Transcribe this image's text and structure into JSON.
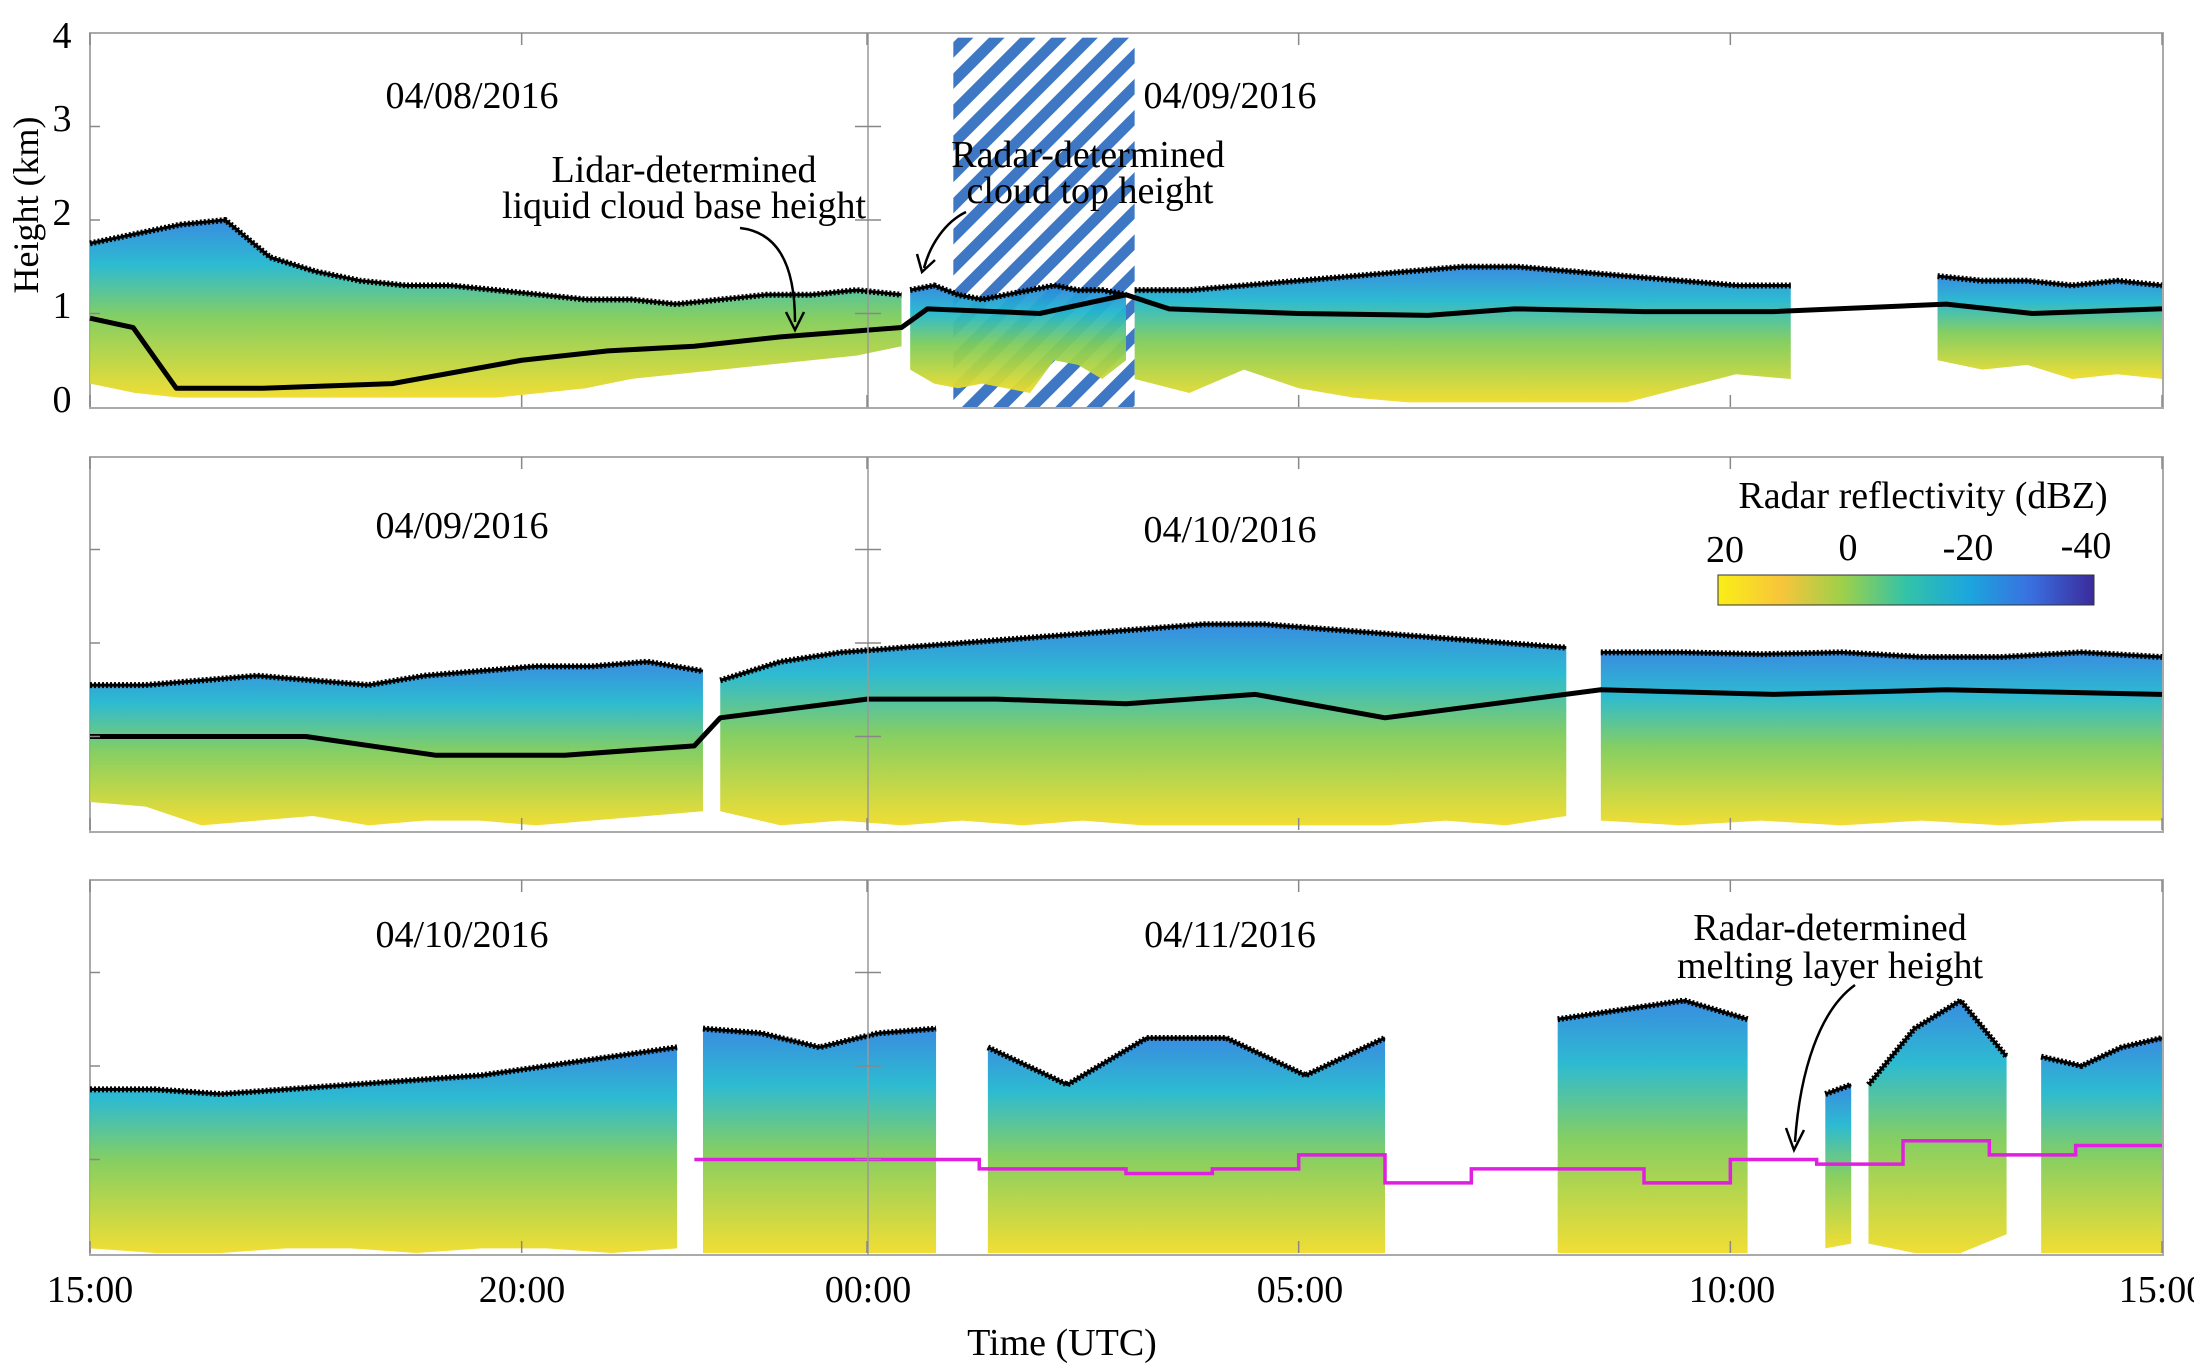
{
  "chart_data": {
    "type": "heatmap",
    "title": "",
    "xlabel": "Time (UTC)",
    "ylabel": "Height (km)",
    "x_ticks": [
      "15:00",
      "20:00",
      "00:00",
      "05:00",
      "10:00",
      "15:00"
    ],
    "y_ticks": [
      "0",
      "1",
      "2",
      "3",
      "4"
    ],
    "ylim": [
      0,
      4
    ],
    "colorbar": {
      "title": "Radar reflectivity (dBZ)",
      "tick_labels": [
        "20",
        "0",
        "-20",
        "-40"
      ],
      "range": [
        20,
        -45
      ],
      "colors": [
        "#f9ee16",
        "#f8c53a",
        "#9cd04a",
        "#33c3a8",
        "#1ba6dd",
        "#3a6fe0",
        "#3b2a9a"
      ]
    },
    "colors": {
      "cloud_height_markers": "#000000",
      "melting_layer": "#e020e0",
      "missing_data_hatch": "#3e78c4"
    },
    "panels": [
      {
        "dates": [
          "04/08/2016",
          "04/09/2016"
        ],
        "annotations": [
          {
            "text_lines": [
              "Lidar-determined",
              "liquid cloud base height"
            ]
          },
          {
            "text_lines": [
              "Radar-determined",
              "cloud top height"
            ]
          }
        ],
        "missing_data_hours": [
          10.0,
          12.1
        ],
        "echo_segments": [
          {
            "hours": [
              0.0,
              9.4
            ],
            "cloud_top_km": [
              1.75,
              1.85,
              1.95,
              2.0,
              1.6,
              1.45,
              1.35,
              1.3,
              1.3,
              1.25,
              1.2,
              1.15,
              1.15,
              1.1,
              1.15,
              1.2,
              1.2,
              1.25,
              1.2
            ],
            "echo_bottom_km": [
              0.25,
              0.15,
              0.1,
              0.1,
              0.1,
              0.1,
              0.1,
              0.1,
              0.1,
              0.1,
              0.15,
              0.2,
              0.3,
              0.35,
              0.4,
              0.45,
              0.5,
              0.55,
              0.65
            ]
          },
          {
            "hours": [
              9.5,
              12.0
            ],
            "cloud_top_km": [
              1.25,
              1.3,
              1.2,
              1.15,
              1.2,
              1.25,
              1.3,
              1.25,
              1.25,
              1.2
            ],
            "echo_bottom_km": [
              0.4,
              0.25,
              0.2,
              0.25,
              0.2,
              0.15,
              0.5,
              0.45,
              0.3,
              0.5
            ]
          },
          {
            "hours": [
              12.1,
              19.7
            ],
            "cloud_top_km": [
              1.25,
              1.25,
              1.3,
              1.35,
              1.4,
              1.45,
              1.5,
              1.5,
              1.45,
              1.4,
              1.35,
              1.3,
              1.3
            ],
            "echo_bottom_km": [
              0.3,
              0.15,
              0.4,
              0.2,
              0.1,
              0.05,
              0.05,
              0.05,
              0.05,
              0.05,
              0.2,
              0.35,
              0.3
            ]
          },
          {
            "hours": [
              21.4,
              24.0
            ],
            "cloud_top_km": [
              1.4,
              1.35,
              1.35,
              1.3,
              1.35,
              1.3
            ],
            "echo_bottom_km": [
              0.5,
              0.4,
              0.45,
              0.3,
              0.35,
              0.3
            ]
          }
        ],
        "lidar_cloud_base": {
          "hours": [
            0.0,
            0.5,
            1.0,
            2.0,
            3.5,
            5.0,
            6.0,
            7.0,
            8.0,
            9.4,
            9.7,
            11.0,
            12.0,
            12.5,
            14.0,
            15.5,
            16.5,
            18.0,
            19.5,
            21.5,
            22.5,
            24.0
          ],
          "km": [
            0.95,
            0.85,
            0.2,
            0.2,
            0.25,
            0.5,
            0.6,
            0.65,
            0.75,
            0.85,
            1.05,
            1.0,
            1.2,
            1.05,
            1.0,
            0.98,
            1.05,
            1.02,
            1.02,
            1.1,
            1.0,
            1.05
          ]
        }
      },
      {
        "dates": [
          "04/09/2016",
          "04/10/2016"
        ],
        "annotations": [],
        "echo_segments": [
          {
            "hours": [
              0.0,
              7.1
            ],
            "cloud_top_km": [
              1.55,
              1.55,
              1.6,
              1.65,
              1.6,
              1.55,
              1.65,
              1.7,
              1.75,
              1.75,
              1.8,
              1.7
            ],
            "echo_bottom_km": [
              0.3,
              0.25,
              0.05,
              0.1,
              0.15,
              0.05,
              0.1,
              0.1,
              0.05,
              0.1,
              0.15,
              0.2
            ]
          },
          {
            "hours": [
              7.3,
              17.1
            ],
            "cloud_top_km": [
              1.6,
              1.8,
              1.9,
              1.95,
              2.0,
              2.05,
              2.1,
              2.15,
              2.2,
              2.2,
              2.15,
              2.1,
              2.05,
              2.0,
              1.95
            ],
            "echo_bottom_km": [
              0.2,
              0.05,
              0.1,
              0.05,
              0.1,
              0.05,
              0.1,
              0.05,
              0.05,
              0.05,
              0.05,
              0.05,
              0.1,
              0.05,
              0.15
            ]
          },
          {
            "hours": [
              17.5,
              24.0
            ],
            "cloud_top_km": [
              1.9,
              1.9,
              1.88,
              1.9,
              1.85,
              1.85,
              1.9,
              1.85
            ],
            "echo_bottom_km": [
              0.1,
              0.05,
              0.1,
              0.05,
              0.1,
              0.05,
              0.1,
              0.1
            ]
          }
        ],
        "cloud_base": {
          "hours": [
            0.0,
            1.0,
            2.5,
            4.0,
            5.5,
            7.0,
            7.3,
            9.0,
            10.5,
            12.0,
            13.5,
            15.0,
            17.5,
            19.5,
            21.5,
            24.0
          ],
          "km": [
            1.0,
            1.0,
            1.0,
            0.8,
            0.8,
            0.9,
            1.2,
            1.4,
            1.4,
            1.35,
            1.45,
            1.2,
            1.5,
            1.45,
            1.5,
            1.45
          ]
        }
      },
      {
        "dates": [
          "04/10/2016",
          "04/11/2016"
        ],
        "annotations": [
          {
            "text_lines": [
              "Radar-determined",
              "melting layer height"
            ]
          }
        ],
        "echo_segments": [
          {
            "hours": [
              0.0,
              6.8
            ],
            "cloud_top_km": [
              1.75,
              1.75,
              1.7,
              1.75,
              1.8,
              1.85,
              1.9,
              2.0,
              2.1,
              2.2
            ],
            "echo_bottom_km": [
              0.05,
              0.0,
              0.0,
              0.05,
              0.05,
              0.0,
              0.05,
              0.05,
              0.0,
              0.05
            ]
          },
          {
            "hours": [
              7.1,
              9.8
            ],
            "cloud_top_km": [
              2.4,
              2.35,
              2.2,
              2.35,
              2.4
            ],
            "echo_bottom_km": [
              0.0,
              0.0,
              0.0,
              0.0,
              0.0
            ]
          },
          {
            "hours": [
              10.4,
              15.0
            ],
            "cloud_top_km": [
              2.2,
              1.8,
              2.3,
              2.3,
              1.9,
              2.3
            ],
            "echo_bottom_km": [
              0.0,
              0.0,
              0.0,
              0.0,
              0.0,
              0.0
            ]
          },
          {
            "hours": [
              17.0,
              19.2
            ],
            "cloud_top_km": [
              2.5,
              2.6,
              2.7,
              2.5
            ],
            "echo_bottom_km": [
              0.0,
              0.0,
              0.0,
              0.0
            ]
          },
          {
            "hours": [
              20.1,
              20.4
            ],
            "cloud_top_km": [
              1.7,
              1.8
            ],
            "echo_bottom_km": [
              0.05,
              0.1
            ]
          },
          {
            "hours": [
              20.6,
              22.2
            ],
            "cloud_top_km": [
              1.8,
              2.4,
              2.7,
              2.1
            ],
            "echo_bottom_km": [
              0.1,
              0.0,
              0.0,
              0.2
            ]
          },
          {
            "hours": [
              22.6,
              24.0
            ],
            "cloud_top_km": [
              2.1,
              2.0,
              2.2,
              2.3
            ],
            "echo_bottom_km": [
              0.0,
              0.0,
              0.0,
              0.0
            ]
          }
        ],
        "melting_layer": {
          "hours": [
            7.0,
            10.3,
            10.3,
            12.0,
            12.0,
            13.0,
            13.0,
            14.0,
            14.0,
            15.0,
            15.0,
            16.0,
            16.0,
            18.0,
            18.0,
            19.0,
            19.0,
            20.0,
            20.0,
            21.0,
            21.0,
            22.0,
            22.0,
            23.0,
            23.0,
            24.0
          ],
          "km": [
            1.0,
            1.0,
            0.9,
            0.9,
            0.85,
            0.85,
            0.9,
            0.9,
            1.05,
            1.05,
            0.75,
            0.75,
            0.9,
            0.9,
            0.75,
            0.75,
            1.0,
            1.0,
            0.95,
            0.95,
            1.2,
            1.2,
            1.05,
            1.05,
            1.15,
            1.15
          ]
        }
      }
    ]
  }
}
